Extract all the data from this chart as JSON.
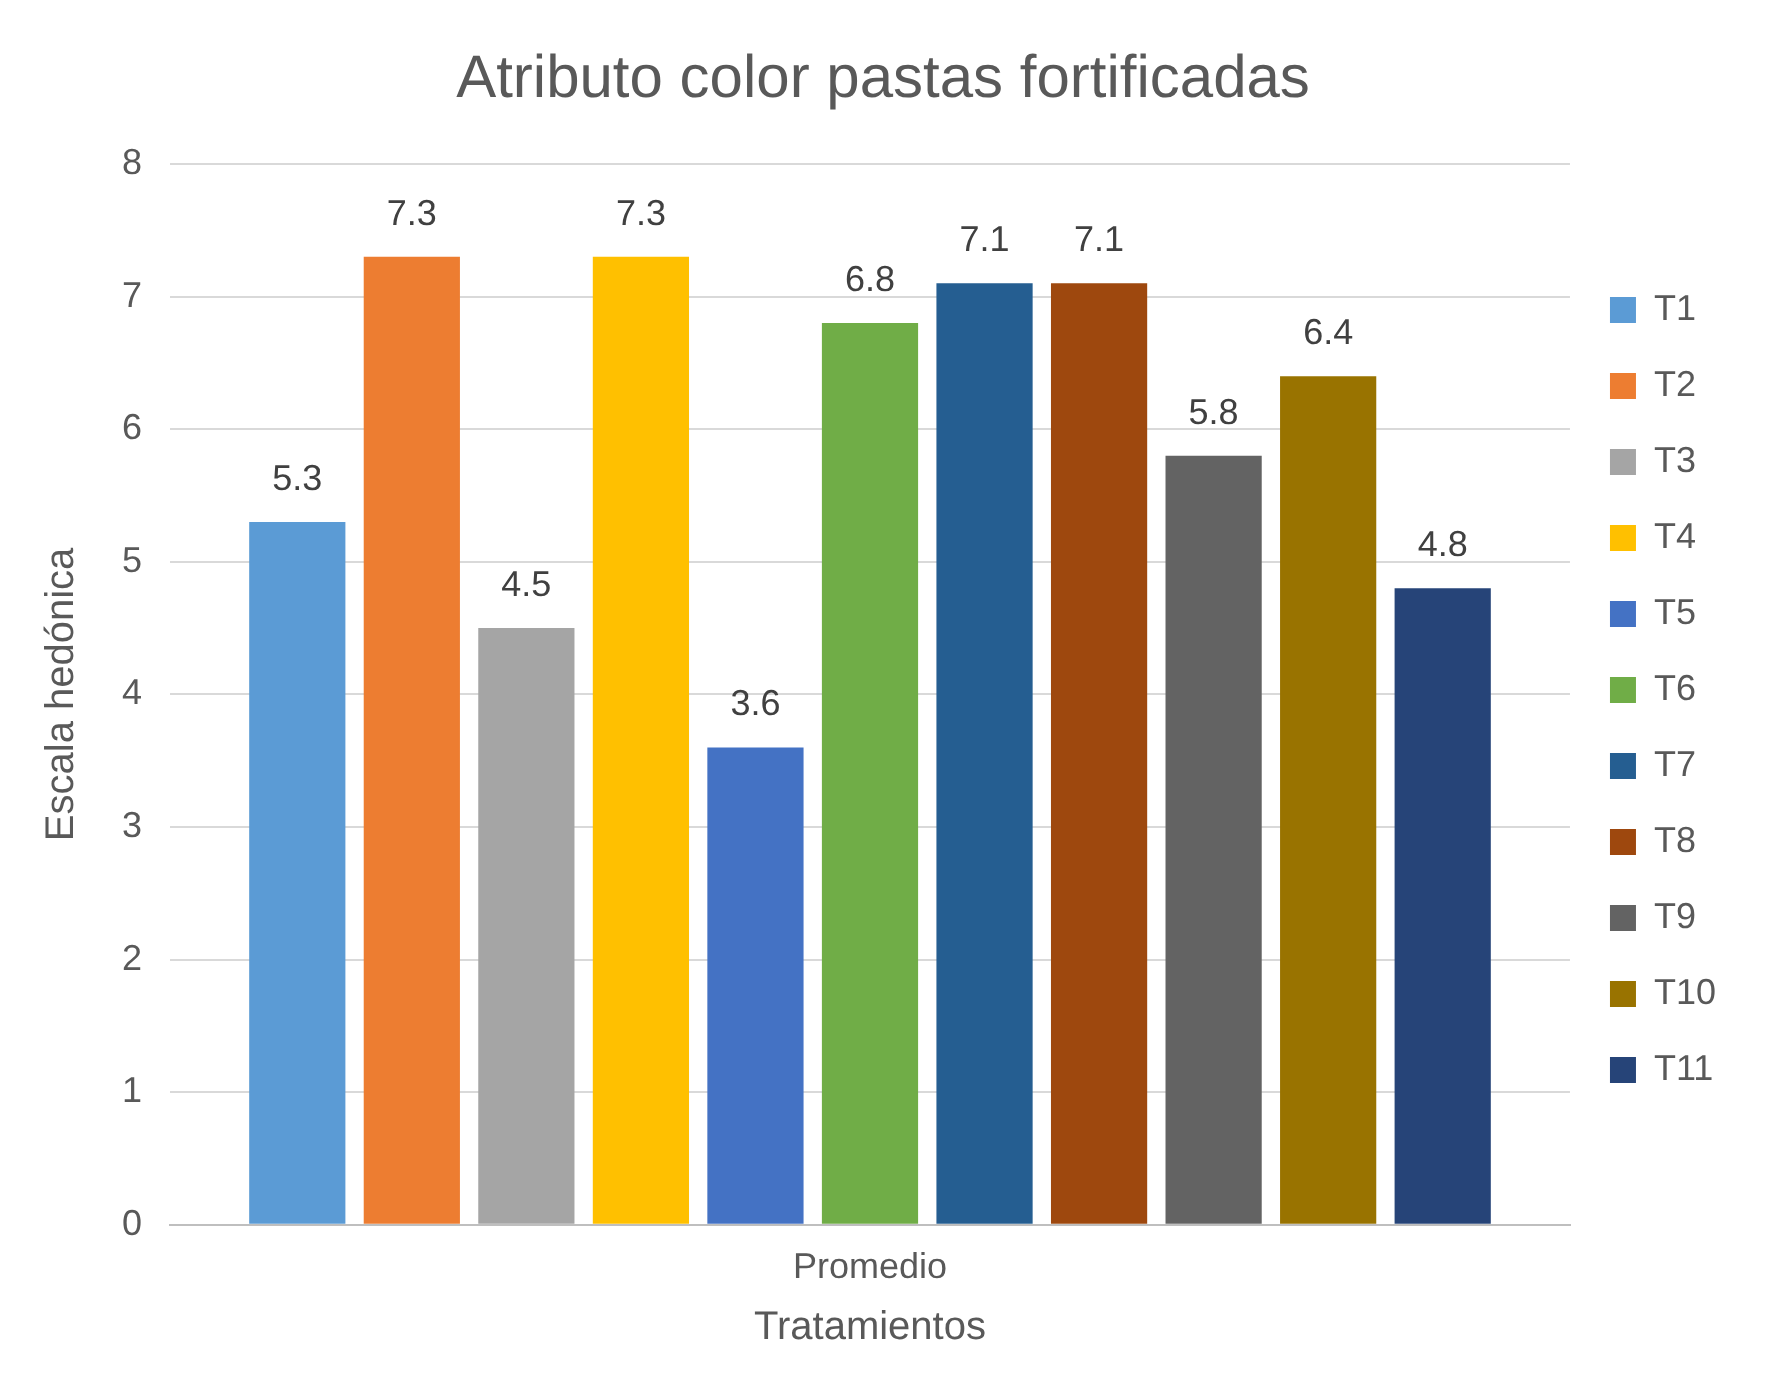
{
  "chart_data": {
    "type": "bar",
    "title": "Atributo color pastas fortificadas",
    "xlabel": "Tratamientos",
    "ylabel": "Escala hedónica",
    "categories": [
      "Promedio"
    ],
    "series": [
      {
        "name": "T1",
        "color": "#5b9bd5",
        "values": [
          5.3
        ]
      },
      {
        "name": "T2",
        "color": "#ed7d31",
        "values": [
          7.3
        ]
      },
      {
        "name": "T3",
        "color": "#a5a5a5",
        "values": [
          4.5
        ]
      },
      {
        "name": "T4",
        "color": "#ffc000",
        "values": [
          7.3
        ]
      },
      {
        "name": "T5",
        "color": "#4472c4",
        "values": [
          3.6
        ]
      },
      {
        "name": "T6",
        "color": "#70ad47",
        "values": [
          6.8
        ]
      },
      {
        "name": "T7",
        "color": "#255e91",
        "values": [
          7.1
        ]
      },
      {
        "name": "T8",
        "color": "#9e480e",
        "values": [
          7.1
        ]
      },
      {
        "name": "T9",
        "color": "#636363",
        "values": [
          5.8
        ]
      },
      {
        "name": "T10",
        "color": "#997300",
        "values": [
          6.4
        ]
      },
      {
        "name": "T11",
        "color": "#264478",
        "values": [
          4.8
        ]
      }
    ],
    "ylim": [
      0,
      8
    ],
    "yticks": [
      0,
      1,
      2,
      3,
      4,
      5,
      6,
      7,
      8
    ],
    "grid": "y",
    "legend": "right",
    "data_labels": true
  }
}
